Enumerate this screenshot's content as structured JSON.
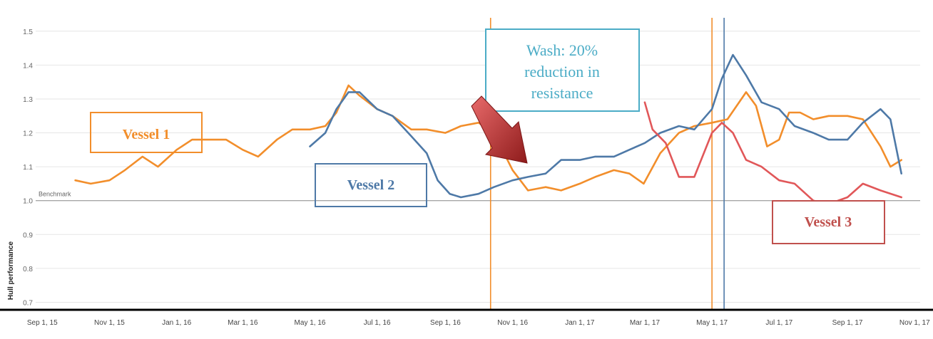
{
  "chart_data": {
    "type": "line",
    "ylabel": "Hull performance",
    "ylim": [
      0.68,
      1.55
    ],
    "yticks": [
      "0.7",
      "0.8",
      "0.9",
      "1.0",
      "1.1",
      "1.2",
      "1.3",
      "1.4",
      "1.5"
    ],
    "xlim": [
      "2015-08-26",
      "2017-11-06"
    ],
    "xticks": [
      {
        "label": "Sep 1, 15",
        "date": "2015-09-01"
      },
      {
        "label": "Nov 1, 15",
        "date": "2015-11-01"
      },
      {
        "label": "Jan 1, 16",
        "date": "2016-01-01"
      },
      {
        "label": "Mar 1, 16",
        "date": "2016-03-01"
      },
      {
        "label": "May 1, 16",
        "date": "2016-05-01"
      },
      {
        "label": "Jul 1, 16",
        "date": "2016-07-01"
      },
      {
        "label": "Sep 1, 16",
        "date": "2016-09-01"
      },
      {
        "label": "Nov 1, 16",
        "date": "2016-11-01"
      },
      {
        "label": "Jan 1, 17",
        "date": "2017-01-01"
      },
      {
        "label": "Mar 1, 17",
        "date": "2017-03-01"
      },
      {
        "label": "May 1, 17",
        "date": "2017-05-01"
      },
      {
        "label": "Jul 1, 17",
        "date": "2017-07-01"
      },
      {
        "label": "Sep 1, 17",
        "date": "2017-09-01"
      },
      {
        "label": "Nov 1, 17",
        "date": "2017-11-01"
      }
    ],
    "grid": true,
    "benchmark": {
      "label": "Benchmark",
      "value": 1.0
    },
    "series": [
      {
        "name": "Vessel 1",
        "color": "#f28e2b",
        "points": [
          [
            "2015-10-01",
            1.06
          ],
          [
            "2015-10-15",
            1.05
          ],
          [
            "2015-11-01",
            1.06
          ],
          [
            "2015-11-15",
            1.09
          ],
          [
            "2015-12-01",
            1.13
          ],
          [
            "2015-12-15",
            1.1
          ],
          [
            "2016-01-01",
            1.15
          ],
          [
            "2016-01-15",
            1.18
          ],
          [
            "2016-02-01",
            1.18
          ],
          [
            "2016-02-15",
            1.18
          ],
          [
            "2016-03-01",
            1.15
          ],
          [
            "2016-03-15",
            1.13
          ],
          [
            "2016-04-01",
            1.18
          ],
          [
            "2016-04-15",
            1.21
          ],
          [
            "2016-05-01",
            1.21
          ],
          [
            "2016-05-15",
            1.22
          ],
          [
            "2016-05-25",
            1.26
          ],
          [
            "2016-06-05",
            1.34
          ],
          [
            "2016-06-15",
            1.31
          ],
          [
            "2016-07-01",
            1.27
          ],
          [
            "2016-07-15",
            1.25
          ],
          [
            "2016-08-01",
            1.21
          ],
          [
            "2016-08-15",
            1.21
          ],
          [
            "2016-09-01",
            1.2
          ],
          [
            "2016-09-15",
            1.22
          ],
          [
            "2016-10-01",
            1.23
          ],
          [
            "2016-10-15",
            1.2
          ],
          [
            "2016-11-01",
            1.09
          ],
          [
            "2016-11-15",
            1.03
          ],
          [
            "2016-12-01",
            1.04
          ],
          [
            "2016-12-15",
            1.03
          ],
          [
            "2017-01-01",
            1.05
          ],
          [
            "2017-01-15",
            1.07
          ],
          [
            "2017-02-01",
            1.09
          ],
          [
            "2017-02-15",
            1.08
          ],
          [
            "2017-02-28",
            1.05
          ],
          [
            "2017-03-15",
            1.14
          ],
          [
            "2017-04-01",
            1.2
          ],
          [
            "2017-04-15",
            1.22
          ],
          [
            "2017-05-01",
            1.23
          ],
          [
            "2017-05-15",
            1.24
          ],
          [
            "2017-06-01",
            1.32
          ],
          [
            "2017-06-10",
            1.28
          ],
          [
            "2017-06-20",
            1.16
          ],
          [
            "2017-07-01",
            1.18
          ],
          [
            "2017-07-10",
            1.26
          ],
          [
            "2017-07-20",
            1.26
          ],
          [
            "2017-08-01",
            1.24
          ],
          [
            "2017-08-15",
            1.25
          ],
          [
            "2017-09-01",
            1.25
          ],
          [
            "2017-09-15",
            1.24
          ],
          [
            "2017-10-01",
            1.16
          ],
          [
            "2017-10-10",
            1.1
          ],
          [
            "2017-10-20",
            1.12
          ]
        ]
      },
      {
        "name": "Vessel 2",
        "color": "#4e79a7",
        "points": [
          [
            "2016-05-01",
            1.16
          ],
          [
            "2016-05-15",
            1.2
          ],
          [
            "2016-05-25",
            1.27
          ],
          [
            "2016-06-05",
            1.32
          ],
          [
            "2016-06-15",
            1.32
          ],
          [
            "2016-07-01",
            1.27
          ],
          [
            "2016-07-15",
            1.25
          ],
          [
            "2016-08-01",
            1.19
          ],
          [
            "2016-08-15",
            1.14
          ],
          [
            "2016-08-25",
            1.06
          ],
          [
            "2016-09-05",
            1.02
          ],
          [
            "2016-09-15",
            1.01
          ],
          [
            "2016-10-01",
            1.02
          ],
          [
            "2016-10-15",
            1.04
          ],
          [
            "2016-11-01",
            1.06
          ],
          [
            "2016-11-15",
            1.07
          ],
          [
            "2016-12-01",
            1.08
          ],
          [
            "2016-12-15",
            1.12
          ],
          [
            "2017-01-01",
            1.12
          ],
          [
            "2017-01-15",
            1.13
          ],
          [
            "2017-02-01",
            1.13
          ],
          [
            "2017-02-15",
            1.15
          ],
          [
            "2017-03-01",
            1.17
          ],
          [
            "2017-03-15",
            1.2
          ],
          [
            "2017-04-01",
            1.22
          ],
          [
            "2017-04-15",
            1.21
          ],
          [
            "2017-05-01",
            1.27
          ],
          [
            "2017-05-10",
            1.36
          ],
          [
            "2017-05-20",
            1.43
          ],
          [
            "2017-06-01",
            1.37
          ],
          [
            "2017-06-15",
            1.29
          ],
          [
            "2017-07-01",
            1.27
          ],
          [
            "2017-07-15",
            1.22
          ],
          [
            "2017-08-01",
            1.2
          ],
          [
            "2017-08-15",
            1.18
          ],
          [
            "2017-09-01",
            1.18
          ],
          [
            "2017-09-15",
            1.23
          ],
          [
            "2017-10-01",
            1.27
          ],
          [
            "2017-10-10",
            1.24
          ],
          [
            "2017-10-20",
            1.08
          ]
        ]
      },
      {
        "name": "Vessel 3",
        "color": "#e15759",
        "points": [
          [
            "2017-03-01",
            1.29
          ],
          [
            "2017-03-08",
            1.21
          ],
          [
            "2017-03-20",
            1.17
          ],
          [
            "2017-04-01",
            1.07
          ],
          [
            "2017-04-15",
            1.07
          ],
          [
            "2017-05-01",
            1.2
          ],
          [
            "2017-05-10",
            1.23
          ],
          [
            "2017-05-20",
            1.2
          ],
          [
            "2017-06-01",
            1.12
          ],
          [
            "2017-06-15",
            1.1
          ],
          [
            "2017-07-01",
            1.06
          ],
          [
            "2017-07-15",
            1.05
          ],
          [
            "2017-08-01",
            1.0
          ],
          [
            "2017-08-15",
            0.99
          ],
          [
            "2017-09-01",
            1.01
          ],
          [
            "2017-09-15",
            1.05
          ],
          [
            "2017-10-01",
            1.03
          ],
          [
            "2017-10-20",
            1.01
          ]
        ]
      }
    ],
    "vertical_lines": [
      {
        "date": "2016-10-12",
        "color": "#f28e2b"
      },
      {
        "date": "2017-05-01",
        "color": "#f28e2b"
      },
      {
        "date": "2017-05-12",
        "color": "#4e79a7"
      }
    ]
  },
  "annotations": {
    "vessel1": {
      "text": "Vessel 1",
      "color": "#f28e2b"
    },
    "vessel2": {
      "text": "Vessel 2",
      "color": "#4e79a7"
    },
    "vessel3": {
      "text": "Vessel 3",
      "color": "#c0504d"
    },
    "wash": {
      "lines": [
        "Wash: 20%",
        "reduction in",
        "resistance"
      ],
      "color": "#4bacc6"
    },
    "arrow_color": "#c0392b"
  }
}
